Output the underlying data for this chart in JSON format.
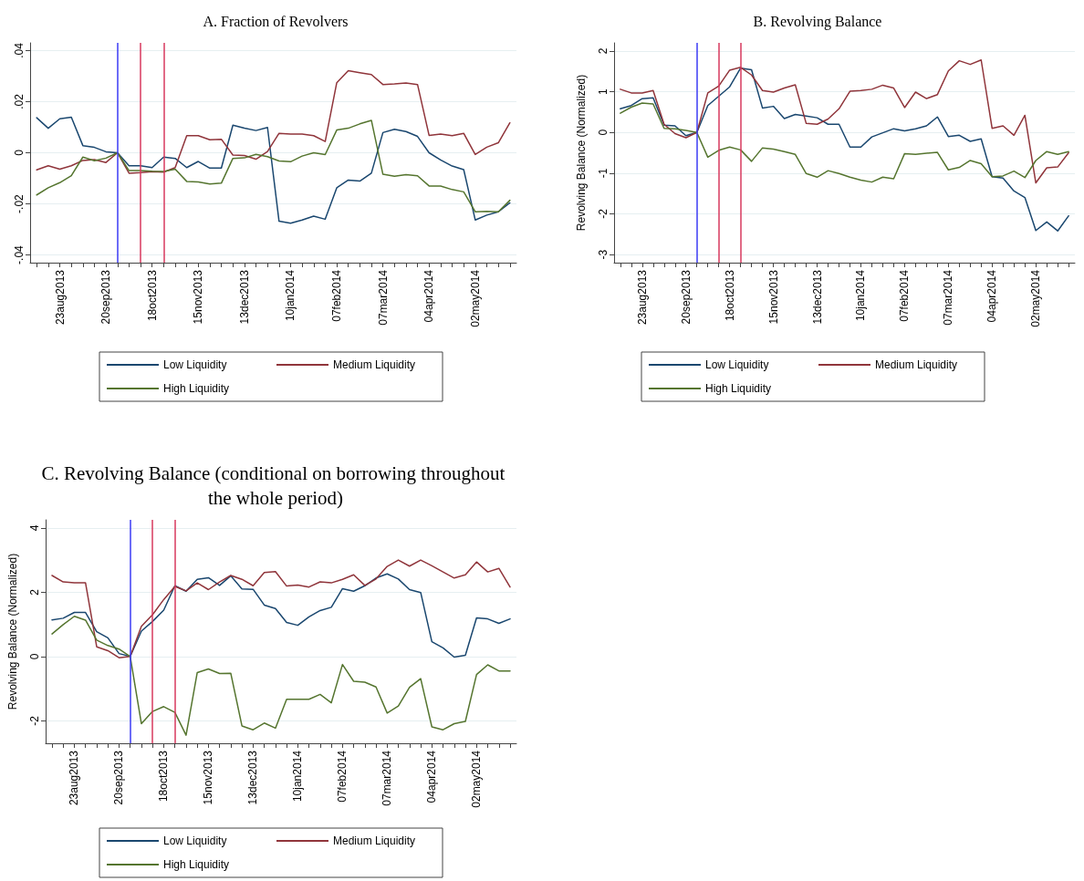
{
  "chart_data": [
    {
      "type": "line",
      "title": "A. Fraction of Revolvers",
      "grid": "y",
      "legend": "bottom",
      "x": [
        "2013-08-09",
        "2013-08-16",
        "2013-08-23",
        "2013-08-30",
        "2013-09-06",
        "2013-09-13",
        "2013-09-20",
        "2013-09-27",
        "2013-10-04",
        "2013-10-11",
        "2013-10-18",
        "2013-10-25",
        "2013-11-01",
        "2013-11-08",
        "2013-11-15",
        "2013-11-22",
        "2013-11-29",
        "2013-12-06",
        "2013-12-13",
        "2013-12-20",
        "2013-12-27",
        "2014-01-03",
        "2014-01-10",
        "2014-01-17",
        "2014-01-24",
        "2014-01-31",
        "2014-02-07",
        "2014-02-14",
        "2014-02-21",
        "2014-02-28",
        "2014-03-07",
        "2014-03-14",
        "2014-03-21",
        "2014-03-28",
        "2014-04-04",
        "2014-04-11",
        "2014-04-18",
        "2014-04-25",
        "2014-05-02",
        "2014-05-09",
        "2014-05-16",
        "2014-05-23"
      ],
      "xlim": [
        "2013-08-05",
        "2014-05-27"
      ],
      "xticks": [
        {
          "value": "2013-08-09",
          "label": null
        },
        {
          "value": "2013-08-16",
          "label": null
        },
        {
          "value": "2013-08-23",
          "label": "23aug2013"
        },
        {
          "value": "2013-08-30",
          "label": null
        },
        {
          "value": "2013-09-06",
          "label": null
        },
        {
          "value": "2013-09-13",
          "label": null
        },
        {
          "value": "2013-09-20",
          "label": "20sep2013"
        },
        {
          "value": "2013-09-27",
          "label": null
        },
        {
          "value": "2013-10-04",
          "label": null
        },
        {
          "value": "2013-10-11",
          "label": null
        },
        {
          "value": "2013-10-18",
          "label": "18oct2013"
        },
        {
          "value": "2013-10-25",
          "label": null
        },
        {
          "value": "2013-11-01",
          "label": null
        },
        {
          "value": "2013-11-08",
          "label": null
        },
        {
          "value": "2013-11-15",
          "label": "15nov2013"
        },
        {
          "value": "2013-11-22",
          "label": null
        },
        {
          "value": "2013-11-29",
          "label": null
        },
        {
          "value": "2013-12-06",
          "label": null
        },
        {
          "value": "2013-12-13",
          "label": "13dec2013"
        },
        {
          "value": "2013-12-20",
          "label": null
        },
        {
          "value": "2013-12-27",
          "label": null
        },
        {
          "value": "2014-01-03",
          "label": null
        },
        {
          "value": "2014-01-10",
          "label": "10jan2014"
        },
        {
          "value": "2014-01-17",
          "label": null
        },
        {
          "value": "2014-01-24",
          "label": null
        },
        {
          "value": "2014-01-31",
          "label": null
        },
        {
          "value": "2014-02-07",
          "label": "07feb2014"
        },
        {
          "value": "2014-02-14",
          "label": null
        },
        {
          "value": "2014-02-21",
          "label": null
        },
        {
          "value": "2014-02-28",
          "label": null
        },
        {
          "value": "2014-03-07",
          "label": "07mar2014"
        },
        {
          "value": "2014-03-14",
          "label": null
        },
        {
          "value": "2014-03-21",
          "label": null
        },
        {
          "value": "2014-03-28",
          "label": null
        },
        {
          "value": "2014-04-04",
          "label": "04apr2014"
        },
        {
          "value": "2014-04-11",
          "label": null
        },
        {
          "value": "2014-04-18",
          "label": null
        },
        {
          "value": "2014-04-25",
          "label": null
        },
        {
          "value": "2014-05-02",
          "label": "02may2014"
        },
        {
          "value": "2014-05-09",
          "label": null
        },
        {
          "value": "2014-05-16",
          "label": null
        },
        {
          "value": "2014-05-23",
          "label": null
        }
      ],
      "ylim": [
        -0.043,
        0.043
      ],
      "yticks": [
        {
          "value": -0.04,
          "label": "-.04"
        },
        {
          "value": -0.02,
          "label": "-.02"
        },
        0,
        {
          "value": 0.02,
          "label": ".02"
        },
        {
          "value": 0.04,
          "label": ".04"
        }
      ],
      "ref_lines": [
        {
          "axis": "x",
          "value": "2013-09-27",
          "color": "#3b3bf5"
        },
        {
          "axis": "x",
          "value": "2013-10-11",
          "color": "#d7385e"
        },
        {
          "axis": "x",
          "value": "2013-10-25",
          "color": "#d7385e"
        }
      ],
      "series": [
        {
          "name": "Low Liquidity",
          "color": "#1a476f",
          "values": [
            0.0137,
            0.0096,
            0.0133,
            0.0139,
            0.0028,
            0.0021,
            0.0004,
            0,
            -0.0051,
            -0.0051,
            -0.0058,
            -0.0017,
            -0.0022,
            -0.0058,
            -0.0034,
            -0.006,
            -0.006,
            0.0108,
            0.0096,
            0.0087,
            0.0099,
            -0.0268,
            -0.0276,
            -0.0263,
            -0.0248,
            -0.026,
            -0.0137,
            -0.0107,
            -0.0111,
            -0.008,
            0.0079,
            0.0092,
            0.0083,
            0.0064,
            0,
            -0.0028,
            -0.0052,
            -0.0066,
            -0.0263,
            -0.0244,
            -0.0231,
            -0.0196
          ]
        },
        {
          "name": "Medium Liquidity",
          "color": "#90353b",
          "values": [
            -0.0067,
            -0.0051,
            -0.0064,
            -0.0051,
            -0.003,
            -0.0027,
            -0.0038,
            0,
            -0.008,
            -0.0078,
            -0.0074,
            -0.0076,
            -0.0058,
            0.0067,
            0.0067,
            0.0051,
            0.0053,
            -0.0009,
            -0.0011,
            -0.0025,
            0.0005,
            0.0076,
            0.0073,
            0.0073,
            0.0067,
            0.0044,
            0.0274,
            0.0321,
            0.0313,
            0.0306,
            0.0267,
            0.0269,
            0.0273,
            0.0267,
            0.0068,
            0.0073,
            0.0067,
            0.0076,
            -0.0007,
            0.0022,
            0.0039,
            0.0117
          ]
        },
        {
          "name": "High Liquidity",
          "color": "#55752f",
          "values": [
            -0.0165,
            -0.0137,
            -0.0117,
            -0.009,
            -0.0017,
            -0.0031,
            -0.0021,
            0,
            -0.007,
            -0.007,
            -0.0072,
            -0.0073,
            -0.0064,
            -0.0112,
            -0.0114,
            -0.0122,
            -0.0119,
            -0.0022,
            -0.002,
            -0.0006,
            -0.0015,
            -0.0032,
            -0.0035,
            -0.0013,
            0,
            -0.0007,
            0.0089,
            0.0096,
            0.0113,
            0.0127,
            -0.0084,
            -0.0092,
            -0.0086,
            -0.009,
            -0.013,
            -0.013,
            -0.0144,
            -0.0153,
            -0.0231,
            -0.0229,
            -0.0231,
            -0.0186
          ]
        }
      ]
    },
    {
      "type": "line",
      "title": "B. Revolving Balance",
      "ylabel": "Revolving Balance (Normalized)",
      "grid": "y",
      "legend": "bottom",
      "x": [
        "2013-08-09",
        "2013-08-16",
        "2013-08-23",
        "2013-08-30",
        "2013-09-06",
        "2013-09-13",
        "2013-09-20",
        "2013-09-27",
        "2013-10-04",
        "2013-10-11",
        "2013-10-18",
        "2013-10-25",
        "2013-11-01",
        "2013-11-08",
        "2013-11-15",
        "2013-11-22",
        "2013-11-29",
        "2013-12-06",
        "2013-12-13",
        "2013-12-20",
        "2013-12-27",
        "2014-01-03",
        "2014-01-10",
        "2014-01-17",
        "2014-01-24",
        "2014-01-31",
        "2014-02-07",
        "2014-02-14",
        "2014-02-21",
        "2014-02-28",
        "2014-03-07",
        "2014-03-14",
        "2014-03-21",
        "2014-03-28",
        "2014-04-04",
        "2014-04-11",
        "2014-04-18",
        "2014-04-25",
        "2014-05-02",
        "2014-05-09",
        "2014-05-16",
        "2014-05-23"
      ],
      "xlim": [
        "2013-08-05",
        "2014-05-27"
      ],
      "xticks": [
        {
          "value": "2013-08-09",
          "label": null
        },
        {
          "value": "2013-08-16",
          "label": null
        },
        {
          "value": "2013-08-23",
          "label": "23aug2013"
        },
        {
          "value": "2013-08-30",
          "label": null
        },
        {
          "value": "2013-09-06",
          "label": null
        },
        {
          "value": "2013-09-13",
          "label": null
        },
        {
          "value": "2013-09-20",
          "label": "20sep2013"
        },
        {
          "value": "2013-09-27",
          "label": null
        },
        {
          "value": "2013-10-04",
          "label": null
        },
        {
          "value": "2013-10-11",
          "label": null
        },
        {
          "value": "2013-10-18",
          "label": "18oct2013"
        },
        {
          "value": "2013-10-25",
          "label": null
        },
        {
          "value": "2013-11-01",
          "label": null
        },
        {
          "value": "2013-11-08",
          "label": null
        },
        {
          "value": "2013-11-15",
          "label": "15nov2013"
        },
        {
          "value": "2013-11-22",
          "label": null
        },
        {
          "value": "2013-11-29",
          "label": null
        },
        {
          "value": "2013-12-06",
          "label": null
        },
        {
          "value": "2013-12-13",
          "label": "13dec2013"
        },
        {
          "value": "2013-12-20",
          "label": null
        },
        {
          "value": "2013-12-27",
          "label": null
        },
        {
          "value": "2014-01-03",
          "label": null
        },
        {
          "value": "2014-01-10",
          "label": "10jan2014"
        },
        {
          "value": "2014-01-17",
          "label": null
        },
        {
          "value": "2014-01-24",
          "label": null
        },
        {
          "value": "2014-01-31",
          "label": null
        },
        {
          "value": "2014-02-07",
          "label": "07feb2014"
        },
        {
          "value": "2014-02-14",
          "label": null
        },
        {
          "value": "2014-02-21",
          "label": null
        },
        {
          "value": "2014-02-28",
          "label": null
        },
        {
          "value": "2014-03-07",
          "label": "07mar2014"
        },
        {
          "value": "2014-03-14",
          "label": null
        },
        {
          "value": "2014-03-21",
          "label": null
        },
        {
          "value": "2014-03-28",
          "label": null
        },
        {
          "value": "2014-04-04",
          "label": "04apr2014"
        },
        {
          "value": "2014-04-11",
          "label": null
        },
        {
          "value": "2014-04-18",
          "label": null
        },
        {
          "value": "2014-04-25",
          "label": null
        },
        {
          "value": "2014-05-02",
          "label": "02may2014"
        },
        {
          "value": "2014-05-09",
          "label": null
        },
        {
          "value": "2014-05-16",
          "label": null
        },
        {
          "value": "2014-05-23",
          "label": null
        }
      ],
      "ylim": [
        -3.2,
        2.2
      ],
      "yticks": [
        -3,
        -2,
        -1,
        0,
        1,
        2
      ],
      "ref_lines": [
        {
          "axis": "x",
          "value": "2013-09-27",
          "color": "#3b3bf5"
        },
        {
          "axis": "x",
          "value": "2013-10-11",
          "color": "#d7385e"
        },
        {
          "axis": "x",
          "value": "2013-10-25",
          "color": "#d7385e"
        }
      ],
      "series": [
        {
          "name": "Low Liquidity",
          "color": "#1a476f",
          "values": [
            0.58,
            0.66,
            0.83,
            0.85,
            0.18,
            0.16,
            -0.08,
            0,
            0.66,
            0.89,
            1.12,
            1.58,
            1.54,
            0.6,
            0.64,
            0.34,
            0.44,
            0.4,
            0.36,
            0.2,
            0.2,
            -0.36,
            -0.36,
            -0.11,
            -0.01,
            0.09,
            0.04,
            0.09,
            0.16,
            0.38,
            -0.1,
            -0.07,
            -0.22,
            -0.16,
            -1.09,
            -1.12,
            -1.44,
            -1.6,
            -2.41,
            -2.2,
            -2.42,
            -2.05
          ]
        },
        {
          "name": "Medium Liquidity",
          "color": "#90353b",
          "values": [
            1.06,
            0.97,
            0.97,
            1.03,
            0.2,
            -0.03,
            -0.13,
            0,
            0.97,
            1.14,
            1.53,
            1.6,
            1.41,
            1.03,
            0.99,
            1.09,
            1.17,
            0.22,
            0.2,
            0.33,
            0.58,
            1.01,
            1.03,
            1.06,
            1.16,
            1.09,
            0.61,
            0.99,
            0.83,
            0.93,
            1.51,
            1.76,
            1.67,
            1.78,
            0.1,
            0.16,
            -0.07,
            0.42,
            -1.24,
            -0.87,
            -0.85,
            -0.5
          ]
        },
        {
          "name": "High Liquidity",
          "color": "#55752f",
          "values": [
            0.47,
            0.62,
            0.72,
            0.7,
            0.1,
            0.09,
            0.05,
            0,
            -0.61,
            -0.44,
            -0.36,
            -0.43,
            -0.71,
            -0.38,
            -0.41,
            -0.47,
            -0.54,
            -1.01,
            -1.1,
            -0.94,
            -1.01,
            -1.1,
            -1.17,
            -1.22,
            -1.1,
            -1.14,
            -0.52,
            -0.54,
            -0.51,
            -0.49,
            -0.92,
            -0.86,
            -0.69,
            -0.77,
            -1.09,
            -1.07,
            -0.95,
            -1.11,
            -0.69,
            -0.47,
            -0.54,
            -0.47
          ]
        }
      ]
    },
    {
      "type": "line",
      "title": "C. Revolving Balance (conditional on borrowing throughout the whole period)",
      "ylabel": "Revolving Balance (Normalized)",
      "grid": "y",
      "legend": "bottom",
      "x": [
        "2013-08-09",
        "2013-08-16",
        "2013-08-23",
        "2013-08-30",
        "2013-09-06",
        "2013-09-13",
        "2013-09-20",
        "2013-09-27",
        "2013-10-04",
        "2013-10-11",
        "2013-10-18",
        "2013-10-25",
        "2013-11-01",
        "2013-11-08",
        "2013-11-15",
        "2013-11-22",
        "2013-11-29",
        "2013-12-06",
        "2013-12-13",
        "2013-12-20",
        "2013-12-27",
        "2014-01-03",
        "2014-01-10",
        "2014-01-17",
        "2014-01-24",
        "2014-01-31",
        "2014-02-07",
        "2014-02-14",
        "2014-02-21",
        "2014-02-28",
        "2014-03-07",
        "2014-03-14",
        "2014-03-21",
        "2014-03-28",
        "2014-04-04",
        "2014-04-11",
        "2014-04-18",
        "2014-04-25",
        "2014-05-02",
        "2014-05-09",
        "2014-05-16",
        "2014-05-23"
      ],
      "xlim": [
        "2013-08-05",
        "2014-05-27"
      ],
      "xticks": [
        {
          "value": "2013-08-09",
          "label": null
        },
        {
          "value": "2013-08-16",
          "label": null
        },
        {
          "value": "2013-08-23",
          "label": "23aug2013"
        },
        {
          "value": "2013-08-30",
          "label": null
        },
        {
          "value": "2013-09-06",
          "label": null
        },
        {
          "value": "2013-09-13",
          "label": null
        },
        {
          "value": "2013-09-20",
          "label": "20sep2013"
        },
        {
          "value": "2013-09-27",
          "label": null
        },
        {
          "value": "2013-10-04",
          "label": null
        },
        {
          "value": "2013-10-11",
          "label": null
        },
        {
          "value": "2013-10-18",
          "label": "18oct2013"
        },
        {
          "value": "2013-10-25",
          "label": null
        },
        {
          "value": "2013-11-01",
          "label": null
        },
        {
          "value": "2013-11-08",
          "label": null
        },
        {
          "value": "2013-11-15",
          "label": "15nov2013"
        },
        {
          "value": "2013-11-22",
          "label": null
        },
        {
          "value": "2013-11-29",
          "label": null
        },
        {
          "value": "2013-12-06",
          "label": null
        },
        {
          "value": "2013-12-13",
          "label": "13dec2013"
        },
        {
          "value": "2013-12-20",
          "label": null
        },
        {
          "value": "2013-12-27",
          "label": null
        },
        {
          "value": "2014-01-03",
          "label": null
        },
        {
          "value": "2014-01-10",
          "label": "10jan2014"
        },
        {
          "value": "2014-01-17",
          "label": null
        },
        {
          "value": "2014-01-24",
          "label": null
        },
        {
          "value": "2014-01-31",
          "label": null
        },
        {
          "value": "2014-02-07",
          "label": "07feb2014"
        },
        {
          "value": "2014-02-14",
          "label": null
        },
        {
          "value": "2014-02-21",
          "label": null
        },
        {
          "value": "2014-02-28",
          "label": null
        },
        {
          "value": "2014-03-07",
          "label": "07mar2014"
        },
        {
          "value": "2014-03-14",
          "label": null
        },
        {
          "value": "2014-03-21",
          "label": null
        },
        {
          "value": "2014-03-28",
          "label": null
        },
        {
          "value": "2014-04-04",
          "label": "04apr2014"
        },
        {
          "value": "2014-04-11",
          "label": null
        },
        {
          "value": "2014-04-18",
          "label": null
        },
        {
          "value": "2014-04-25",
          "label": null
        },
        {
          "value": "2014-05-02",
          "label": "02may2014"
        },
        {
          "value": "2014-05-09",
          "label": null
        },
        {
          "value": "2014-05-16",
          "label": null
        },
        {
          "value": "2014-05-23",
          "label": null
        }
      ],
      "ylim": [
        -2.7,
        4.25
      ],
      "yticks": [
        -2,
        0,
        2,
        4
      ],
      "ref_lines": [
        {
          "axis": "x",
          "value": "2013-09-27",
          "color": "#3b3bf5"
        },
        {
          "axis": "x",
          "value": "2013-10-11",
          "color": "#d7385e"
        },
        {
          "axis": "x",
          "value": "2013-10-25",
          "color": "#d7385e"
        }
      ],
      "series": [
        {
          "name": "Low Liquidity",
          "color": "#1a476f",
          "values": [
            1.14,
            1.19,
            1.37,
            1.37,
            0.77,
            0.58,
            0.09,
            0,
            0.79,
            1.09,
            1.44,
            2.2,
            2.03,
            2.4,
            2.45,
            2.21,
            2.51,
            2.1,
            2.09,
            1.6,
            1.49,
            1.06,
            0.97,
            1.23,
            1.43,
            1.53,
            2.11,
            2.03,
            2.2,
            2.44,
            2.57,
            2.41,
            2.08,
            1.99,
            0.46,
            0.27,
            -0.02,
            0.04,
            1.2,
            1.17,
            1.03,
            1.17
          ]
        },
        {
          "name": "Medium Liquidity",
          "color": "#90353b",
          "values": [
            2.52,
            2.32,
            2.29,
            2.29,
            0.3,
            0.18,
            -0.04,
            0,
            0.94,
            1.3,
            1.77,
            2.18,
            2.04,
            2.29,
            2.08,
            2.32,
            2.52,
            2.4,
            2.2,
            2.61,
            2.64,
            2.19,
            2.22,
            2.16,
            2.32,
            2.29,
            2.4,
            2.54,
            2.21,
            2.41,
            2.8,
            3.0,
            2.81,
            3.0,
            2.82,
            2.63,
            2.44,
            2.54,
            2.94,
            2.63,
            2.74,
            2.16
          ]
        },
        {
          "name": "High Liquidity",
          "color": "#55752f",
          "values": [
            0.7,
            0.99,
            1.25,
            1.13,
            0.51,
            0.34,
            0.23,
            0,
            -2.09,
            -1.71,
            -1.56,
            -1.74,
            -2.45,
            -0.5,
            -0.39,
            -0.53,
            -0.52,
            -2.16,
            -2.28,
            -2.07,
            -2.23,
            -1.33,
            -1.33,
            -1.33,
            -1.18,
            -1.44,
            -0.25,
            -0.77,
            -0.8,
            -0.95,
            -1.76,
            -1.54,
            -0.96,
            -0.69,
            -2.19,
            -2.28,
            -2.09,
            -2.02,
            -0.56,
            -0.26,
            -0.45,
            -0.45
          ]
        }
      ]
    }
  ]
}
